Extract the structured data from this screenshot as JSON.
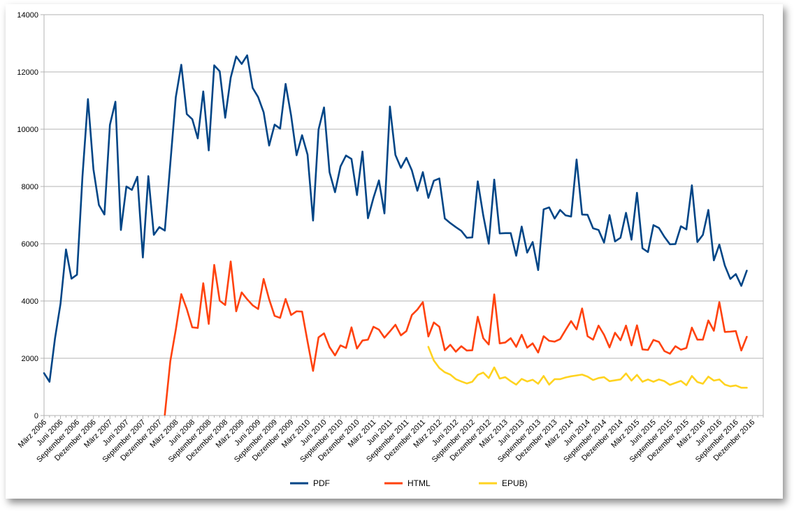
{
  "chart_data": {
    "type": "line",
    "title": "",
    "xlabel": "",
    "ylabel": "",
    "ylim": [
      0,
      14000
    ],
    "y_ticks": [
      0,
      2000,
      4000,
      6000,
      8000,
      10000,
      12000,
      14000
    ],
    "grid": "horizontal",
    "legend": "bottom",
    "x_start": "2006-03",
    "x_tick_labels": [
      "März 2006",
      "Juni 2006",
      "September 2006",
      "Dezember 2006",
      "März 2007",
      "Juni 2007",
      "September 2007",
      "Dezember 2007",
      "März 2008",
      "Juni 2008",
      "September 2008",
      "Dezember 2008",
      "März 2009",
      "Juni 2009",
      "September 2009",
      "Dezember 2009",
      "März 2010",
      "Juni 2010",
      "September 2010",
      "Dezember 2010",
      "März 2011",
      "Juni 2011",
      "September 2011",
      "Dezember 2011",
      "März 2012",
      "Juni 2012",
      "September 2012",
      "Dezember 2012",
      "März 2013",
      "Juni 2013",
      "September 2013",
      "Dezember 2013",
      "März 2014",
      "Juni 2014",
      "September 2014",
      "Dezember 2014",
      "März 2015",
      "Juni 2015",
      "September 2015",
      "Dezember 2015",
      "März 2016",
      "Juni 2016",
      "September 2016",
      "Dezember 2016"
    ],
    "series": [
      {
        "name": "PDF",
        "color": "#004586",
        "start_index": 0,
        "values": [
          1480,
          1180,
          2700,
          3900,
          5800,
          4780,
          4920,
          8350,
          11050,
          8600,
          7350,
          7020,
          10150,
          10960,
          6480,
          8000,
          7880,
          8340,
          5520,
          8360,
          6310,
          6580,
          6460,
          8800,
          11120,
          12250,
          10530,
          10350,
          9680,
          11320,
          9260,
          12230,
          12020,
          10400,
          11800,
          12540,
          12280,
          12580,
          11440,
          11120,
          10590,
          9430,
          10160,
          10020,
          11580,
          10480,
          9090,
          9790,
          9110,
          6810,
          9990,
          10760,
          8500,
          7800,
          8700,
          9080,
          8960,
          7700,
          9220,
          6890,
          7600,
          8210,
          7060,
          10790,
          9100,
          8650,
          9000,
          8560,
          7850,
          8500,
          7600,
          8200,
          8280,
          6880,
          6720,
          6580,
          6450,
          6210,
          6220,
          8180,
          6990,
          6000,
          8240,
          6360,
          6370,
          6370,
          5580,
          6600,
          5690,
          6060,
          5080,
          7200,
          7270,
          6880,
          7180,
          6990,
          6950,
          8940,
          7020,
          7010,
          6540,
          6480,
          6040,
          7000,
          6080,
          6210,
          7080,
          6140,
          7780,
          5840,
          5710,
          6650,
          6550,
          6240,
          5980,
          5990,
          6610,
          6500,
          8040,
          6060,
          6310,
          7180,
          5420,
          5970,
          5240,
          4770,
          4940,
          4530,
          5060
        ]
      },
      {
        "name": "HTML",
        "color": "#ff420e",
        "start_index": 22,
        "values": [
          30,
          1900,
          3000,
          4240,
          3720,
          3080,
          3060,
          4620,
          3200,
          5260,
          4010,
          3860,
          5380,
          3640,
          4300,
          4060,
          3850,
          3720,
          4770,
          4060,
          3480,
          3410,
          4070,
          3510,
          3640,
          3630,
          2580,
          1560,
          2730,
          2870,
          2390,
          2100,
          2450,
          2360,
          3080,
          2340,
          2620,
          2650,
          3100,
          3000,
          2720,
          2940,
          3170,
          2800,
          2950,
          3510,
          3700,
          3960,
          2760,
          3250,
          3100,
          2280,
          2470,
          2230,
          2420,
          2270,
          2280,
          3450,
          2700,
          2480,
          4230,
          2520,
          2550,
          2700,
          2400,
          2820,
          2370,
          2520,
          2200,
          2770,
          2610,
          2580,
          2670,
          2990,
          3300,
          3010,
          3740,
          2770,
          2650,
          3140,
          2820,
          2380,
          2890,
          2630,
          3140,
          2450,
          3150,
          2310,
          2290,
          2640,
          2570,
          2250,
          2160,
          2420,
          2300,
          2360,
          3070,
          2650,
          2650,
          3320,
          2960,
          3960,
          2920,
          2930,
          2950,
          2270,
          2750
        ]
      },
      {
        "name": "EPUB)",
        "color": "#ffd320",
        "start_index": 70,
        "values": [
          2400,
          1920,
          1660,
          1510,
          1430,
          1270,
          1190,
          1120,
          1180,
          1420,
          1500,
          1310,
          1680,
          1290,
          1340,
          1200,
          1080,
          1280,
          1190,
          1250,
          1110,
          1380,
          1080,
          1270,
          1270,
          1330,
          1370,
          1400,
          1430,
          1360,
          1240,
          1310,
          1340,
          1200,
          1230,
          1260,
          1470,
          1220,
          1420,
          1180,
          1260,
          1180,
          1260,
          1200,
          1070,
          1140,
          1210,
          1060,
          1380,
          1170,
          1110,
          1360,
          1220,
          1260,
          1080,
          1020,
          1050,
          970,
          970
        ]
      }
    ]
  }
}
